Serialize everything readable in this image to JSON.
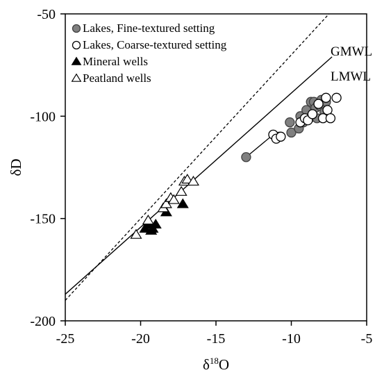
{
  "chart_data": {
    "type": "scatter",
    "xlabel": {
      "prefix": "δ",
      "sup": "18",
      "suffix": "O"
    },
    "ylabel": "δD",
    "xlim": [
      -25,
      -5
    ],
    "ylim": [
      -200,
      -50
    ],
    "xticks": [
      -25,
      -20,
      -15,
      -10,
      -5
    ],
    "yticks": [
      -200,
      -150,
      -100,
      -50
    ],
    "x_tick_labels": [
      "-25",
      "-20",
      "-15",
      "-10",
      "-5"
    ],
    "y_tick_labels": [
      "-200",
      "-150",
      "-100",
      "-50"
    ],
    "grid": false,
    "legend_position": "top-left",
    "series": [
      {
        "name": "Lakes, Fine-textured setting",
        "marker": "circle",
        "fill": "#808080",
        "stroke": "#404040",
        "points": [
          [
            -13.0,
            -120
          ],
          [
            -10.8,
            -110
          ],
          [
            -10.1,
            -103
          ],
          [
            -10.0,
            -108
          ],
          [
            -9.5,
            -106
          ],
          [
            -9.4,
            -100
          ],
          [
            -9.2,
            -103
          ],
          [
            -9.0,
            -97
          ],
          [
            -8.8,
            -101
          ],
          [
            -8.7,
            -93
          ],
          [
            -8.5,
            -93
          ],
          [
            -8.4,
            -96
          ],
          [
            -8.3,
            -101
          ],
          [
            -8.1,
            -95
          ],
          [
            -8.0,
            -92
          ],
          [
            -7.8,
            -98
          ],
          [
            -7.7,
            -93
          ]
        ]
      },
      {
        "name": "Lakes, Coarse-textured setting",
        "marker": "circle",
        "fill": "#ffffff",
        "stroke": "#000000",
        "points": [
          [
            -11.2,
            -109
          ],
          [
            -11.0,
            -111
          ],
          [
            -10.7,
            -110
          ],
          [
            -9.4,
            -103
          ],
          [
            -9.1,
            -101
          ],
          [
            -8.9,
            -102
          ],
          [
            -8.6,
            -99
          ],
          [
            -8.2,
            -94
          ],
          [
            -7.9,
            -101
          ],
          [
            -7.7,
            -91
          ],
          [
            -7.6,
            -97
          ],
          [
            -7.4,
            -101
          ],
          [
            -7.0,
            -91
          ]
        ]
      },
      {
        "name": "Mineral wells",
        "marker": "triangle",
        "fill": "#000000",
        "stroke": "#000000",
        "points": [
          [
            -19.7,
            -155
          ],
          [
            -19.5,
            -153
          ],
          [
            -19.3,
            -156
          ],
          [
            -19.2,
            -155
          ],
          [
            -19.0,
            -153
          ],
          [
            -18.3,
            -147
          ],
          [
            -17.2,
            -143
          ]
        ]
      },
      {
        "name": "Peatland wells",
        "marker": "triangle",
        "fill": "#ffffff",
        "stroke": "#000000",
        "points": [
          [
            -20.3,
            -158
          ],
          [
            -19.5,
            -151
          ],
          [
            -18.5,
            -145
          ],
          [
            -18.3,
            -143
          ],
          [
            -18.0,
            -140
          ],
          [
            -17.8,
            -141
          ],
          [
            -17.3,
            -137
          ],
          [
            -17.1,
            -132
          ],
          [
            -16.9,
            -131
          ],
          [
            -16.5,
            -132
          ]
        ]
      }
    ],
    "lines": [
      {
        "name": "GMWL",
        "style": "dashed",
        "slope": 8,
        "intercept": 10
      },
      {
        "name": "LMWL",
        "style": "solid",
        "x": [
          -25,
          -7.3
        ],
        "y": [
          -187,
          -71
        ]
      }
    ],
    "connectors": [
      {
        "x": [
          -13.0,
          -11.2
        ],
        "y": [
          -120,
          -109
        ]
      }
    ]
  }
}
